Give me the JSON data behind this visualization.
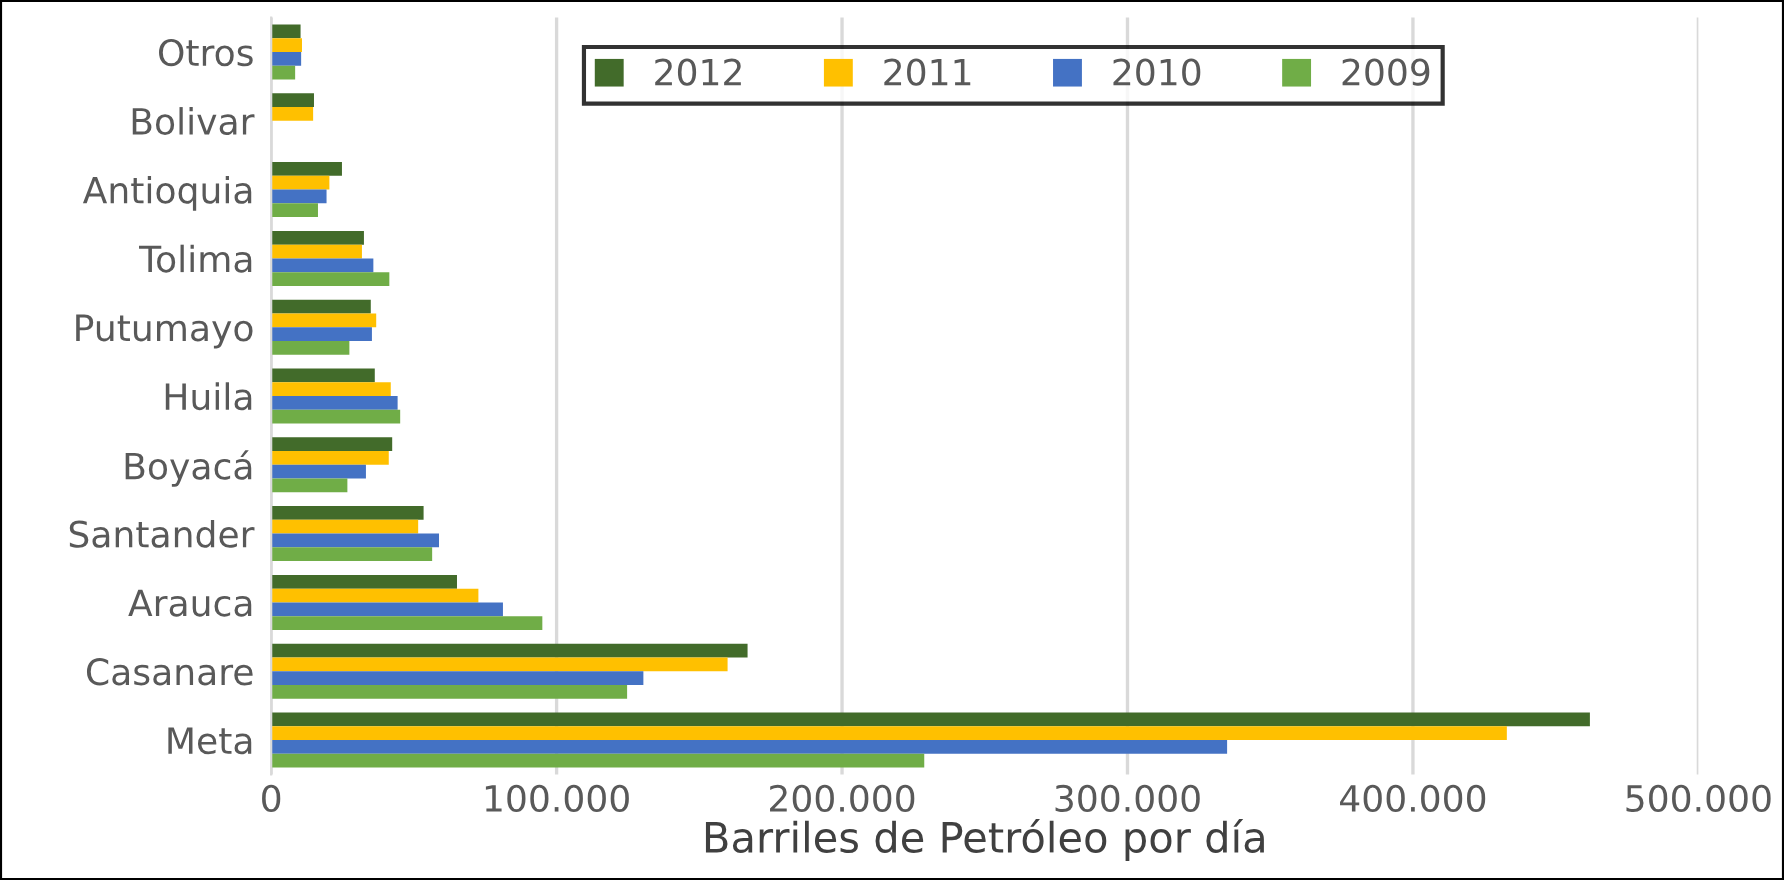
{
  "chart_data": {
    "type": "bar",
    "orientation": "horizontal",
    "xlabel": "Barriles de Petróleo por día",
    "categories": [
      "Otros",
      "Bolivar",
      "Antioquia",
      "Tolima",
      "Putumayo",
      "Huila",
      "Boyacá",
      "Santander",
      "Arauca",
      "Casanare",
      "Meta"
    ],
    "series": [
      {
        "name": "2012",
        "color": "#426b2a",
        "values": [
          10300,
          15000,
          24800,
          32500,
          34900,
          36300,
          42400,
          53400,
          65100,
          166900,
          462000
        ]
      },
      {
        "name": "2011",
        "color": "#ffc000",
        "values": [
          10800,
          14700,
          20400,
          31800,
          36800,
          41900,
          41200,
          51500,
          72600,
          159900,
          432900
        ]
      },
      {
        "name": "2010",
        "color": "#4472c4",
        "values": [
          10500,
          null,
          19400,
          35800,
          35300,
          44300,
          33200,
          58800,
          81200,
          130400,
          334900
        ]
      },
      {
        "name": "2009",
        "color": "#70ad47",
        "values": [
          8400,
          null,
          16400,
          41400,
          27400,
          45200,
          26700,
          56400,
          95000,
          124700,
          228800
        ]
      }
    ],
    "xlim": [
      0,
      500000
    ],
    "xticks": [
      0,
      {
        "value": 100000,
        "label": "100.000"
      },
      {
        "value": 200000,
        "label": "200.000"
      },
      {
        "value": 300000,
        "label": "300.000"
      },
      {
        "value": 400000,
        "label": "400.000"
      },
      {
        "value": 500000,
        "label": "500.000"
      }
    ],
    "grid": "x",
    "legend": "top right"
  }
}
